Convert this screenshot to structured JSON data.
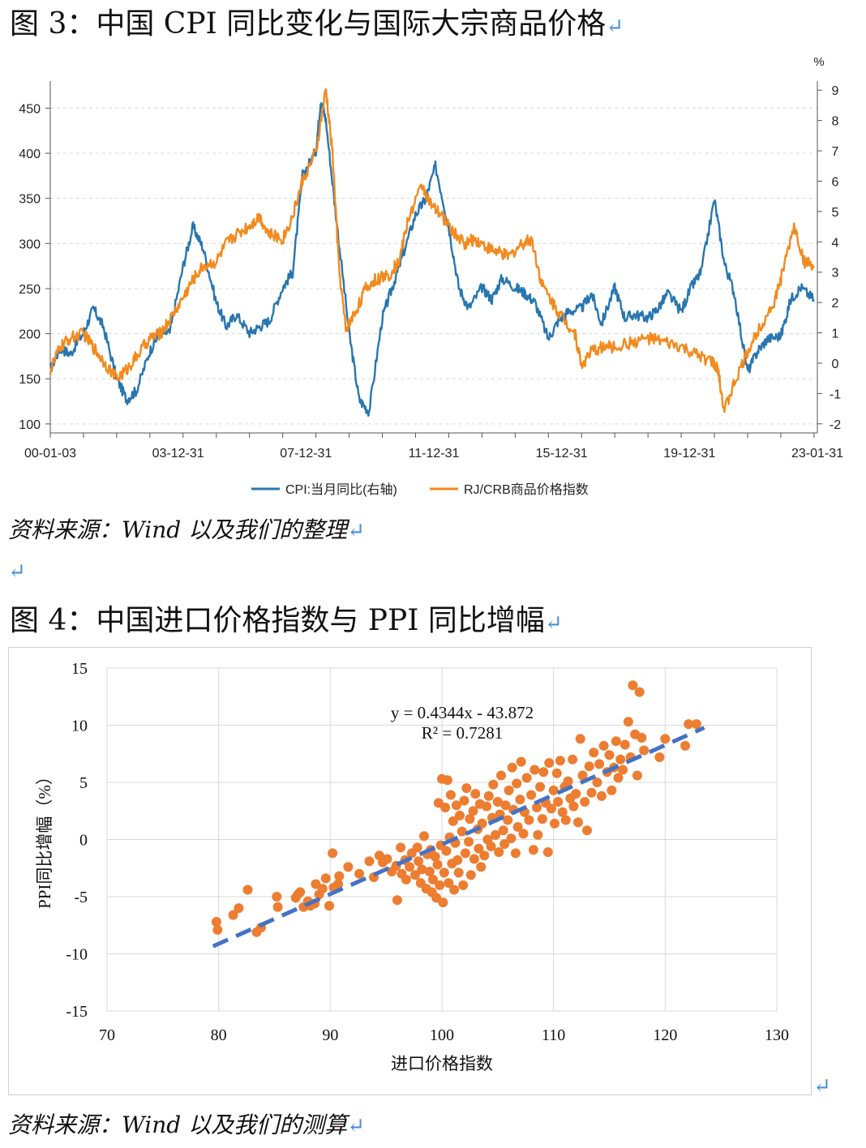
{
  "figure3": {
    "title": "图 3：中国 CPI 同比变化与国际大宗商品价格",
    "source": "资料来源：Wind 以及我们的整理",
    "return_mark": "↵",
    "chart_data": {
      "type": "line",
      "title": "",
      "x_tick_labels": [
        "00-01-03",
        "03-12-31",
        "07-12-31",
        "11-12-31",
        "15-12-31",
        "19-12-31",
        "23-01-31"
      ],
      "x_range": [
        2000.0,
        2023.1
      ],
      "left_axis": {
        "ticks": [
          100,
          150,
          200,
          250,
          300,
          350,
          400,
          450
        ],
        "range": [
          90,
          480
        ]
      },
      "right_axis": {
        "unit": "%",
        "ticks": [
          -2,
          -1,
          0,
          1,
          2,
          3,
          4,
          5,
          6,
          7,
          8,
          9
        ],
        "range": [
          -2.3,
          9.3
        ]
      },
      "grid": true,
      "legend_position": "bottom",
      "series": [
        {
          "name": "CPI:当月同比(右轴)",
          "axis": "right",
          "color": "#2776b0",
          "x": [
            2000.0,
            2000.3,
            2000.6,
            2001.0,
            2001.3,
            2001.6,
            2002.0,
            2002.3,
            2002.6,
            2003.0,
            2003.3,
            2003.6,
            2004.0,
            2004.3,
            2004.6,
            2005.0,
            2005.3,
            2005.6,
            2006.0,
            2006.3,
            2006.6,
            2007.0,
            2007.3,
            2007.6,
            2008.0,
            2008.15,
            2008.3,
            2008.6,
            2009.0,
            2009.3,
            2009.6,
            2010.0,
            2010.3,
            2010.6,
            2011.0,
            2011.3,
            2011.6,
            2012.0,
            2012.3,
            2012.6,
            2013.0,
            2013.3,
            2013.6,
            2014.0,
            2014.3,
            2014.6,
            2015.0,
            2015.3,
            2015.6,
            2016.0,
            2016.3,
            2016.6,
            2017.0,
            2017.3,
            2017.6,
            2018.0,
            2018.3,
            2018.6,
            2019.0,
            2019.3,
            2019.6,
            2020.0,
            2020.3,
            2020.6,
            2021.0,
            2021.3,
            2021.6,
            2022.0,
            2022.3,
            2022.6,
            2023.0
          ],
          "values": [
            -0.2,
            0.5,
            0.3,
            1.0,
            1.8,
            1.2,
            -0.5,
            -1.2,
            -0.9,
            0.4,
            1.0,
            1.0,
            3.2,
            4.5,
            3.8,
            2.0,
            1.2,
            1.6,
            1.0,
            1.2,
            1.4,
            2.5,
            3.0,
            6.2,
            7.0,
            8.7,
            8.0,
            4.9,
            1.0,
            -1.2,
            -1.6,
            1.5,
            2.5,
            3.5,
            4.9,
            5.4,
            6.5,
            4.5,
            2.5,
            1.8,
            2.5,
            2.1,
            2.8,
            2.5,
            2.3,
            2.0,
            0.8,
            1.4,
            1.7,
            1.8,
            2.3,
            1.3,
            2.5,
            1.5,
            1.6,
            1.5,
            1.8,
            2.3,
            1.7,
            2.5,
            3.0,
            5.4,
            3.3,
            2.3,
            -0.3,
            0.4,
            0.8,
            0.9,
            2.1,
            2.5,
            2.1
          ]
        },
        {
          "name": "RJ/CRB商品价格指数",
          "axis": "left",
          "color": "#f28a1e",
          "x": [
            2000.0,
            2000.3,
            2000.6,
            2001.0,
            2001.3,
            2001.6,
            2002.0,
            2002.3,
            2002.6,
            2003.0,
            2003.3,
            2003.6,
            2004.0,
            2004.3,
            2004.6,
            2005.0,
            2005.3,
            2005.6,
            2006.0,
            2006.3,
            2006.6,
            2007.0,
            2007.3,
            2007.6,
            2008.0,
            2008.3,
            2008.5,
            2008.7,
            2008.9,
            2009.2,
            2009.5,
            2009.8,
            2010.2,
            2010.5,
            2010.8,
            2011.2,
            2011.5,
            2011.8,
            2012.2,
            2012.5,
            2012.8,
            2013.2,
            2013.5,
            2013.8,
            2014.2,
            2014.5,
            2014.8,
            2015.2,
            2015.5,
            2015.8,
            2016.0,
            2016.3,
            2016.6,
            2017.0,
            2017.5,
            2018.0,
            2018.5,
            2019.0,
            2019.5,
            2019.9,
            2020.1,
            2020.3,
            2020.6,
            2021.0,
            2021.4,
            2021.8,
            2022.0,
            2022.4,
            2022.7,
            2023.0
          ],
          "values": [
            160,
            185,
            195,
            200,
            185,
            170,
            150,
            160,
            175,
            195,
            200,
            215,
            240,
            260,
            275,
            280,
            300,
            310,
            320,
            330,
            310,
            305,
            330,
            370,
            400,
            470,
            400,
            270,
            205,
            225,
            250,
            260,
            265,
            280,
            330,
            365,
            340,
            330,
            310,
            300,
            305,
            295,
            290,
            285,
            300,
            305,
            255,
            230,
            215,
            200,
            165,
            180,
            185,
            185,
            190,
            195,
            190,
            185,
            175,
            170,
            160,
            115,
            145,
            180,
            210,
            235,
            260,
            320,
            280,
            275
          ]
        }
      ]
    }
  },
  "figure4": {
    "title": "图 4：中国进口价格指数与 PPI 同比增幅",
    "source": "资料来源：Wind 以及我们的测算",
    "return_mark": "↵",
    "chart_data": {
      "type": "scatter",
      "title": "",
      "xlabel": "进口价格指数",
      "ylabel": "PPI同比增幅（%）",
      "xlim": [
        70,
        130
      ],
      "ylim": [
        -15,
        15
      ],
      "x_ticks": [
        70,
        80,
        90,
        100,
        110,
        120,
        130
      ],
      "y_ticks": [
        -15,
        -10,
        -5,
        0,
        5,
        10,
        15
      ],
      "grid": true,
      "trendline": {
        "equation": "y = 0.4344x - 43.872",
        "r_squared": "R² = 0.7281",
        "slope": 0.4344,
        "intercept": -43.872,
        "x_range": [
          79.5,
          123.5
        ],
        "color": "#4472c4"
      },
      "point_color": "#ed7d31",
      "points": [
        [
          79.8,
          -7.2
        ],
        [
          79.9,
          -7.9
        ],
        [
          81.3,
          -6.6
        ],
        [
          81.8,
          -6.0
        ],
        [
          82.6,
          -4.4
        ],
        [
          83.4,
          -8.1
        ],
        [
          83.8,
          -7.7
        ],
        [
          85.2,
          -5.0
        ],
        [
          85.3,
          -5.9
        ],
        [
          86.9,
          -5.1
        ],
        [
          87.1,
          -4.8
        ],
        [
          87.3,
          -4.6
        ],
        [
          87.6,
          -5.9
        ],
        [
          88.0,
          -5.4
        ],
        [
          88.2,
          -5.8
        ],
        [
          88.6,
          -5.6
        ],
        [
          88.7,
          -3.9
        ],
        [
          89.0,
          -4.8
        ],
        [
          89.3,
          -4.3
        ],
        [
          89.6,
          -3.4
        ],
        [
          89.9,
          -5.8
        ],
        [
          90.2,
          -1.2
        ],
        [
          90.3,
          -4.2
        ],
        [
          90.7,
          -3.9
        ],
        [
          90.8,
          -3.2
        ],
        [
          91.6,
          -2.4
        ],
        [
          92.6,
          -3.0
        ],
        [
          93.5,
          -1.9
        ],
        [
          93.9,
          -3.3
        ],
        [
          94.4,
          -1.4
        ],
        [
          94.7,
          -2.0
        ],
        [
          95.1,
          -1.7
        ],
        [
          95.5,
          -2.8
        ],
        [
          95.9,
          -2.3
        ],
        [
          96.0,
          -5.3
        ],
        [
          96.3,
          -0.7
        ],
        [
          96.4,
          -3.0
        ],
        [
          96.7,
          -1.8
        ],
        [
          96.8,
          -3.5
        ],
        [
          97.1,
          -2.4
        ],
        [
          97.3,
          -1.2
        ],
        [
          97.6,
          -3.1
        ],
        [
          97.8,
          -0.7
        ],
        [
          97.9,
          -1.9
        ],
        [
          98.1,
          -3.8
        ],
        [
          98.2,
          -2.6
        ],
        [
          98.4,
          0.3
        ],
        [
          98.6,
          -4.3
        ],
        [
          98.7,
          -1.3
        ],
        [
          98.9,
          -2.8
        ],
        [
          99.0,
          -0.9
        ],
        [
          99.1,
          -4.6
        ],
        [
          99.2,
          -3.5
        ],
        [
          99.4,
          -1.5
        ],
        [
          99.5,
          -5.1
        ],
        [
          99.6,
          -2.2
        ],
        [
          99.7,
          3.2
        ],
        [
          99.8,
          -4.0
        ],
        [
          99.9,
          -0.5
        ],
        [
          100.0,
          5.3
        ],
        [
          100.1,
          -5.5
        ],
        [
          100.2,
          -2.9
        ],
        [
          100.3,
          2.8
        ],
        [
          100.4,
          -1.0
        ],
        [
          100.5,
          5.2
        ],
        [
          100.6,
          -3.8
        ],
        [
          100.7,
          0.2
        ],
        [
          100.8,
          3.9
        ],
        [
          100.9,
          -2.1
        ],
        [
          101.0,
          1.6
        ],
        [
          101.1,
          -4.4
        ],
        [
          101.2,
          -0.3
        ],
        [
          101.3,
          3.0
        ],
        [
          101.4,
          -1.8
        ],
        [
          101.5,
          -2.9
        ],
        [
          101.6,
          2.1
        ],
        [
          101.8,
          0.7
        ],
        [
          101.9,
          -4.0
        ],
        [
          102.0,
          3.4
        ],
        [
          102.1,
          -1.2
        ],
        [
          102.2,
          4.5
        ],
        [
          102.4,
          -0.2
        ],
        [
          102.5,
          1.8
        ],
        [
          102.6,
          -3.1
        ],
        [
          102.8,
          2.5
        ],
        [
          102.9,
          -1.7
        ],
        [
          103.0,
          4.0
        ],
        [
          103.2,
          0.9
        ],
        [
          103.3,
          -0.8
        ],
        [
          103.4,
          3.1
        ],
        [
          103.5,
          -2.4
        ],
        [
          103.6,
          1.4
        ],
        [
          103.8,
          -1.4
        ],
        [
          104.0,
          2.9
        ],
        [
          104.1,
          0.0
        ],
        [
          104.2,
          3.8
        ],
        [
          104.4,
          -0.6
        ],
        [
          104.5,
          1.9
        ],
        [
          104.6,
          4.8
        ],
        [
          104.8,
          0.4
        ],
        [
          105.0,
          3.3
        ],
        [
          105.1,
          -1.1
        ],
        [
          105.2,
          2.2
        ],
        [
          105.3,
          5.6
        ],
        [
          105.5,
          0.8
        ],
        [
          105.6,
          -0.4
        ],
        [
          105.7,
          3.0
        ],
        [
          105.9,
          1.7
        ],
        [
          106.0,
          4.3
        ],
        [
          106.2,
          0.1
        ],
        [
          106.3,
          6.3
        ],
        [
          106.4,
          2.6
        ],
        [
          106.6,
          -1.2
        ],
        [
          106.7,
          4.9
        ],
        [
          106.8,
          1.1
        ],
        [
          107.0,
          3.5
        ],
        [
          107.1,
          6.8
        ],
        [
          107.3,
          0.5
        ],
        [
          107.4,
          2.4
        ],
        [
          107.6,
          5.4
        ],
        [
          107.8,
          1.7
        ],
        [
          108.0,
          3.9
        ],
        [
          108.2,
          -0.9
        ],
        [
          108.3,
          6.1
        ],
        [
          108.5,
          2.8
        ],
        [
          108.6,
          0.4
        ],
        [
          108.8,
          4.6
        ],
        [
          109.0,
          1.8
        ],
        [
          109.1,
          5.9
        ],
        [
          109.3,
          3.2
        ],
        [
          109.5,
          -1.1
        ],
        [
          109.6,
          6.7
        ],
        [
          109.8,
          2.7
        ],
        [
          110.0,
          4.3
        ],
        [
          110.1,
          1.4
        ],
        [
          110.3,
          5.8
        ],
        [
          110.4,
          3.3
        ],
        [
          110.6,
          6.9
        ],
        [
          110.8,
          2.4
        ],
        [
          111.0,
          4.6
        ],
        [
          111.1,
          1.7
        ],
        [
          111.3,
          5.1
        ],
        [
          111.5,
          3.6
        ],
        [
          111.7,
          7.0
        ],
        [
          111.8,
          2.9
        ],
        [
          112.0,
          4.0
        ],
        [
          112.2,
          1.5
        ],
        [
          112.4,
          8.8
        ],
        [
          112.6,
          5.6
        ],
        [
          112.8,
          3.3
        ],
        [
          113.0,
          0.8
        ],
        [
          113.2,
          6.4
        ],
        [
          113.4,
          4.1
        ],
        [
          113.6,
          7.6
        ],
        [
          113.9,
          5.0
        ],
        [
          114.1,
          6.6
        ],
        [
          114.3,
          3.8
        ],
        [
          114.5,
          8.2
        ],
        [
          114.8,
          5.9
        ],
        [
          115.0,
          7.4
        ],
        [
          115.2,
          4.3
        ],
        [
          115.4,
          6.3
        ],
        [
          115.6,
          8.6
        ],
        [
          115.8,
          5.4
        ],
        [
          116.0,
          7.0
        ],
        [
          116.2,
          6.1
        ],
        [
          116.4,
          8.3
        ],
        [
          116.7,
          10.3
        ],
        [
          116.9,
          7.2
        ],
        [
          117.1,
          13.5
        ],
        [
          117.3,
          9.2
        ],
        [
          117.5,
          5.6
        ],
        [
          117.7,
          12.9
        ],
        [
          117.9,
          8.9
        ],
        [
          118.1,
          7.8
        ],
        [
          119.5,
          7.2
        ],
        [
          120.0,
          8.8
        ],
        [
          121.8,
          8.2
        ],
        [
          122.1,
          10.1
        ],
        [
          122.8,
          10.1
        ]
      ]
    }
  },
  "blank_line_mark": "↵",
  "end_mark": "↵"
}
